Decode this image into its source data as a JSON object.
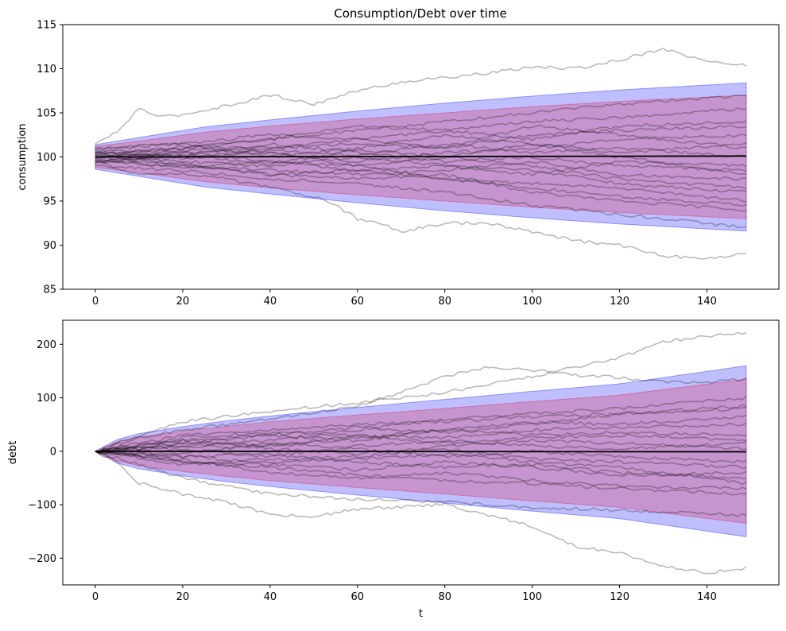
{
  "figure": {
    "title": "Consumption/Debt over time"
  },
  "colors": {
    "band_outer": "#0000ff",
    "band_inner": "#dc143c",
    "paths": "#000000",
    "mean_line": "#000000",
    "background": "#ffffff"
  },
  "chart_data": [
    {
      "type": "line",
      "title": "Consumption/Debt over time",
      "xlabel": "",
      "ylabel": "consumption",
      "xlim": [
        -7.45,
        156.45
      ],
      "ylim": [
        85,
        115
      ],
      "xticks": [
        0,
        20,
        40,
        60,
        80,
        100,
        120,
        140
      ],
      "yticks": [
        85,
        90,
        95,
        100,
        105,
        110,
        115
      ],
      "grid": false,
      "t_range": [
        0,
        149
      ],
      "mean_value": 100,
      "mean_line": {
        "x": [
          0,
          149
        ],
        "y": [
          100,
          100.1
        ]
      },
      "bands": [
        {
          "label": "outer",
          "color": "#0000ff",
          "x": [
            0,
            10,
            25,
            40,
            60,
            80,
            100,
            120,
            149
          ],
          "lower": [
            98.6,
            97.8,
            96.6,
            95.8,
            94.8,
            93.9,
            93.1,
            92.4,
            91.6
          ],
          "upper": [
            101.4,
            102.2,
            103.4,
            104.2,
            105.2,
            106.1,
            106.9,
            107.6,
            108.4
          ]
        },
        {
          "label": "inner",
          "color": "#dc143c",
          "x": [
            0,
            10,
            25,
            40,
            60,
            80,
            100,
            120,
            149
          ],
          "lower": [
            98.8,
            98.2,
            97.2,
            96.5,
            95.7,
            95.0,
            94.3,
            93.7,
            93.0
          ],
          "upper": [
            101.2,
            101.8,
            102.8,
            103.5,
            104.3,
            105.0,
            105.7,
            106.3,
            107.0
          ]
        }
      ],
      "sample_paths": [
        {
          "x": [
            0,
            5,
            10,
            15,
            20,
            30,
            40,
            50,
            60,
            70,
            80,
            90,
            100,
            110,
            120,
            130,
            140,
            149
          ],
          "y": [
            101.5,
            102.8,
            105.5,
            104.5,
            104.8,
            105.8,
            107.0,
            106.0,
            107.5,
            108.5,
            109.0,
            109.5,
            110.2,
            110.0,
            111.0,
            112.3,
            110.8,
            110.4
          ]
        },
        {
          "x": [
            0,
            10,
            20,
            30,
            40,
            50,
            55,
            60,
            65,
            70,
            80,
            90,
            100,
            110,
            120,
            130,
            140,
            149
          ],
          "y": [
            99.5,
            98.0,
            98.2,
            97.5,
            96.5,
            95.5,
            94.5,
            93.0,
            92.5,
            91.5,
            92.5,
            92.5,
            91.5,
            90.5,
            90.0,
            88.8,
            88.5,
            89.0
          ]
        },
        {
          "x": [
            0,
            20,
            40,
            60,
            80,
            100,
            120,
            149
          ],
          "y": [
            100.5,
            101.0,
            102.0,
            103.0,
            104.0,
            105.0,
            106.0,
            107.0
          ]
        },
        {
          "x": [
            0,
            20,
            40,
            60,
            80,
            100,
            120,
            149
          ],
          "y": [
            99.0,
            98.5,
            97.5,
            97.0,
            96.0,
            94.5,
            93.5,
            92.0
          ]
        },
        {
          "x": [
            0,
            20,
            40,
            60,
            80,
            100,
            120,
            149
          ],
          "y": [
            101.0,
            101.5,
            102.5,
            102.0,
            103.0,
            104.0,
            104.5,
            105.5
          ]
        },
        {
          "x": [
            0,
            20,
            40,
            60,
            80,
            100,
            120,
            149
          ],
          "y": [
            99.5,
            99.0,
            98.0,
            98.5,
            97.5,
            96.5,
            95.5,
            94.5
          ]
        },
        {
          "x": [
            0,
            20,
            40,
            60,
            80,
            100,
            120,
            149
          ],
          "y": [
            100.0,
            100.5,
            101.0,
            101.5,
            101.0,
            102.5,
            103.0,
            103.5
          ]
        },
        {
          "x": [
            0,
            20,
            40,
            60,
            80,
            100,
            120,
            149
          ],
          "y": [
            100.2,
            99.5,
            99.0,
            100.0,
            99.0,
            98.5,
            97.0,
            96.0
          ]
        },
        {
          "x": [
            0,
            20,
            40,
            60,
            80,
            100,
            120,
            149
          ],
          "y": [
            99.8,
            100.8,
            100.5,
            99.5,
            100.5,
            101.0,
            102.0,
            102.5
          ]
        },
        {
          "x": [
            0,
            20,
            40,
            60,
            80,
            100,
            120,
            149
          ],
          "y": [
            100.5,
            99.0,
            98.5,
            98.0,
            98.5,
            99.5,
            98.0,
            97.5
          ]
        },
        {
          "x": [
            0,
            20,
            40,
            60,
            80,
            100,
            120,
            149
          ],
          "y": [
            99.3,
            100.2,
            101.5,
            100.5,
            99.5,
            100.0,
            99.0,
            98.5
          ]
        },
        {
          "x": [
            0,
            20,
            40,
            60,
            80,
            100,
            120,
            149
          ],
          "y": [
            100.8,
            101.5,
            100.0,
            101.0,
            102.5,
            101.5,
            100.5,
            101.5
          ]
        },
        {
          "x": [
            0,
            20,
            40,
            60,
            80,
            100,
            120,
            149
          ],
          "y": [
            99.6,
            98.8,
            99.5,
            99.0,
            97.5,
            97.0,
            96.5,
            95.0
          ]
        },
        {
          "x": [
            0,
            20,
            40,
            60,
            80,
            100,
            120,
            149
          ],
          "y": [
            100.3,
            100.9,
            102.0,
            103.5,
            103.0,
            102.0,
            103.5,
            104.0
          ]
        },
        {
          "x": [
            0,
            20,
            40,
            60,
            80,
            100,
            120,
            149
          ],
          "y": [
            99.9,
            99.2,
            98.0,
            97.5,
            98.0,
            96.0,
            95.0,
            94.0
          ]
        },
        {
          "x": [
            0,
            20,
            40,
            60,
            80,
            100,
            120,
            149
          ],
          "y": [
            100.6,
            100.0,
            100.8,
            100.2,
            101.5,
            100.5,
            101.0,
            100.0
          ]
        },
        {
          "x": [
            0,
            20,
            40,
            60,
            80,
            100,
            120,
            149
          ],
          "y": [
            99.4,
            100.5,
            99.5,
            98.5,
            99.0,
            98.0,
            99.5,
            99.0
          ]
        },
        {
          "x": [
            0,
            20,
            40,
            60,
            80,
            100,
            120,
            149
          ],
          "y": [
            100.1,
            101.2,
            101.0,
            102.0,
            101.0,
            103.5,
            102.5,
            101.0
          ]
        },
        {
          "x": [
            0,
            20,
            40,
            60,
            80,
            100,
            120,
            149
          ],
          "y": [
            99.7,
            99.8,
            100.5,
            99.0,
            100.0,
            99.0,
            97.5,
            96.5
          ]
        },
        {
          "x": [
            0,
            20,
            40,
            60,
            80,
            100,
            120,
            149
          ],
          "y": [
            100.4,
            100.2,
            99.2,
            100.8,
            100.0,
            101.5,
            100.0,
            98.0
          ]
        }
      ]
    },
    {
      "type": "line",
      "title": "",
      "xlabel": "t",
      "ylabel": "debt",
      "xlim": [
        -7.45,
        156.45
      ],
      "ylim": [
        -250,
        245
      ],
      "xticks": [
        0,
        20,
        40,
        60,
        80,
        100,
        120,
        140
      ],
      "yticks": [
        -200,
        -100,
        0,
        100,
        200
      ],
      "ytick_labels": [
        "−200",
        "−100",
        "0",
        "100",
        "200"
      ],
      "grid": false,
      "t_range": [
        0,
        149
      ],
      "mean_value": 0,
      "mean_line": {
        "x": [
          0,
          149
        ],
        "y": [
          0,
          -1
        ]
      },
      "bands": [
        {
          "label": "outer",
          "color": "#0000ff",
          "x": [
            0,
            5,
            10,
            20,
            30,
            40,
            60,
            80,
            100,
            120,
            149
          ],
          "lower": [
            0,
            -22,
            -33,
            -46,
            -57,
            -66,
            -82,
            -97,
            -112,
            -126,
            -160
          ],
          "upper": [
            0,
            22,
            33,
            46,
            57,
            66,
            82,
            97,
            112,
            126,
            160
          ]
        },
        {
          "label": "inner",
          "color": "#dc143c",
          "x": [
            0,
            5,
            10,
            20,
            30,
            40,
            60,
            80,
            100,
            120,
            149
          ],
          "lower": [
            0,
            -18,
            -27,
            -38,
            -47,
            -55,
            -68,
            -80,
            -93,
            -105,
            -135
          ],
          "upper": [
            0,
            18,
            27,
            38,
            47,
            55,
            68,
            80,
            93,
            105,
            135
          ]
        }
      ],
      "sample_paths": [
        {
          "x": [
            0,
            10,
            20,
            40,
            60,
            70,
            80,
            90,
            100,
            110,
            120,
            130,
            140,
            149
          ],
          "y": [
            0,
            25,
            40,
            60,
            85,
            110,
            140,
            158,
            152,
            142,
            138,
            130,
            130,
            135
          ]
        },
        {
          "x": [
            0,
            10,
            20,
            40,
            60,
            80,
            100,
            120,
            130,
            140,
            149
          ],
          "y": [
            0,
            30,
            55,
            75,
            90,
            110,
            140,
            175,
            205,
            215,
            222
          ]
        },
        {
          "x": [
            0,
            5,
            10,
            20,
            30,
            40,
            50,
            60,
            80,
            100,
            110,
            120,
            130,
            140,
            149
          ],
          "y": [
            0,
            -20,
            -60,
            -80,
            -95,
            -118,
            -122,
            -108,
            -100,
            -140,
            -178,
            -190,
            -215,
            -228,
            -218
          ]
        },
        {
          "x": [
            0,
            20,
            40,
            60,
            80,
            100,
            120,
            149
          ],
          "y": [
            0,
            -50,
            -80,
            -90,
            -95,
            -105,
            -110,
            -120
          ]
        },
        {
          "x": [
            0,
            20,
            40,
            60,
            80,
            100,
            120,
            149
          ],
          "y": [
            0,
            30,
            40,
            50,
            55,
            65,
            70,
            80
          ]
        },
        {
          "x": [
            0,
            20,
            40,
            60,
            80,
            100,
            120,
            149
          ],
          "y": [
            0,
            -20,
            -30,
            -45,
            -55,
            -60,
            -70,
            -80
          ]
        },
        {
          "x": [
            0,
            20,
            40,
            60,
            80,
            100,
            120,
            149
          ],
          "y": [
            0,
            15,
            30,
            20,
            40,
            55,
            50,
            65
          ]
        },
        {
          "x": [
            0,
            20,
            40,
            60,
            80,
            100,
            120,
            149
          ],
          "y": [
            0,
            -10,
            -5,
            -20,
            -30,
            -25,
            -40,
            -50
          ]
        },
        {
          "x": [
            0,
            20,
            40,
            60,
            80,
            100,
            120,
            149
          ],
          "y": [
            0,
            20,
            10,
            30,
            25,
            40,
            45,
            50
          ]
        },
        {
          "x": [
            0,
            20,
            40,
            60,
            80,
            100,
            120,
            149
          ],
          "y": [
            0,
            -25,
            -15,
            -10,
            5,
            -15,
            -20,
            -30
          ]
        },
        {
          "x": [
            0,
            20,
            40,
            60,
            80,
            100,
            120,
            149
          ],
          "y": [
            0,
            10,
            20,
            40,
            60,
            70,
            80,
            100
          ]
        },
        {
          "x": [
            0,
            20,
            40,
            60,
            80,
            100,
            120,
            149
          ],
          "y": [
            0,
            -15,
            -40,
            -50,
            -40,
            -55,
            -65,
            -70
          ]
        },
        {
          "x": [
            0,
            20,
            40,
            60,
            80,
            100,
            120,
            149
          ],
          "y": [
            0,
            5,
            -10,
            10,
            20,
            10,
            5,
            15
          ]
        },
        {
          "x": [
            0,
            20,
            40,
            60,
            80,
            100,
            120,
            149
          ],
          "y": [
            0,
            25,
            35,
            30,
            15,
            25,
            30,
            20
          ]
        },
        {
          "x": [
            0,
            20,
            40,
            60,
            80,
            100,
            120,
            149
          ],
          "y": [
            0,
            -5,
            15,
            5,
            -10,
            0,
            -10,
            -20
          ]
        },
        {
          "x": [
            0,
            20,
            40,
            60,
            80,
            100,
            120,
            149
          ],
          "y": [
            0,
            15,
            10,
            25,
            40,
            30,
            35,
            30
          ]
        },
        {
          "x": [
            0,
            20,
            40,
            60,
            80,
            100,
            120,
            149
          ],
          "y": [
            0,
            -20,
            -25,
            -35,
            -20,
            -30,
            -45,
            -40
          ]
        },
        {
          "x": [
            0,
            20,
            40,
            60,
            80,
            100,
            120,
            149
          ],
          "y": [
            0,
            10,
            5,
            -5,
            10,
            20,
            15,
            5
          ]
        },
        {
          "x": [
            0,
            20,
            40,
            60,
            80,
            100,
            120,
            149
          ],
          "y": [
            0,
            -10,
            -20,
            -15,
            -5,
            -20,
            -30,
            -60
          ]
        },
        {
          "x": [
            0,
            20,
            40,
            60,
            80,
            100,
            120,
            149
          ],
          "y": [
            0,
            20,
            30,
            45,
            35,
            50,
            70,
            85
          ]
        }
      ]
    }
  ]
}
